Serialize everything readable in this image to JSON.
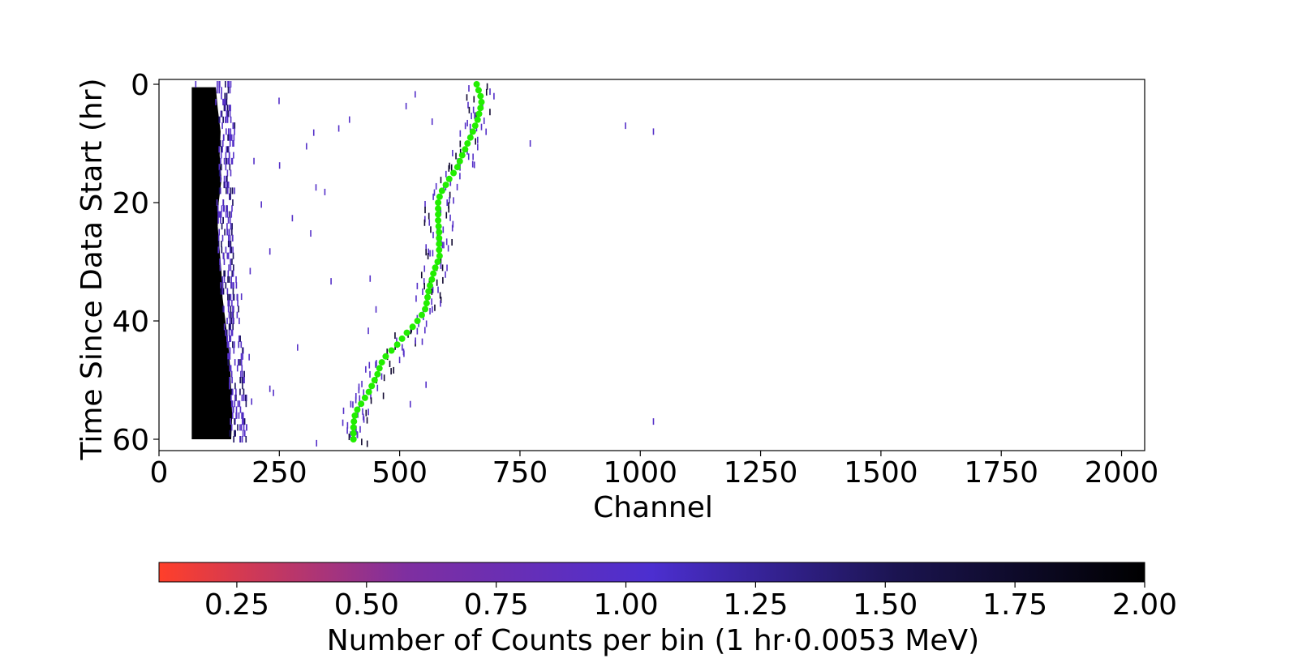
{
  "chart_data": {
    "type": "heatmap",
    "xlabel": "Channel",
    "ylabel": "Time Since Data Start (hr)",
    "xlim": [
      0,
      2048
    ],
    "ylim": [
      0,
      62
    ],
    "y_inverted": true,
    "x_ticks": [
      {
        "value": 0,
        "label": "0"
      },
      {
        "value": 250,
        "label": "250"
      },
      {
        "value": 500,
        "label": "500"
      },
      {
        "value": 750,
        "label": "750"
      },
      {
        "value": 1000,
        "label": "1000"
      },
      {
        "value": 1250,
        "label": "1250"
      },
      {
        "value": 1500,
        "label": "1500"
      },
      {
        "value": 1750,
        "label": "1750"
      },
      {
        "value": 2000,
        "label": "2000"
      }
    ],
    "y_ticks": [
      {
        "value": 0,
        "label": "0"
      },
      {
        "value": 20,
        "label": "20"
      },
      {
        "value": 40,
        "label": "40"
      },
      {
        "value": 60,
        "label": "60"
      }
    ],
    "grid": false,
    "colorbar": {
      "label": "Number of Counts per bin (1 hr·0.0053 MeV)",
      "range": [
        0.1,
        2.0
      ],
      "orientation": "horizontal",
      "placement": "bottom",
      "colors": [
        "#ff3f2a",
        "#7f2fa0",
        "#4c2fd0",
        "#1b1450",
        "#000000"
      ],
      "ticks": [
        {
          "value": 0.25,
          "label": "0.25"
        },
        {
          "value": 0.5,
          "label": "0.50"
        },
        {
          "value": 0.75,
          "label": "0.75"
        },
        {
          "value": 1.0,
          "label": "1.00"
        },
        {
          "value": 1.25,
          "label": "1.25"
        },
        {
          "value": 1.5,
          "label": "1.50"
        },
        {
          "value": 1.75,
          "label": "1.75"
        },
        {
          "value": 2.0,
          "label": "2.00"
        }
      ]
    },
    "dense_band": {
      "x_start": 68,
      "edge": [
        [
          0,
          118
        ],
        [
          4,
          122
        ],
        [
          8,
          128
        ],
        [
          12,
          126
        ],
        [
          16,
          130
        ],
        [
          20,
          124
        ],
        [
          24,
          122
        ],
        [
          28,
          126
        ],
        [
          32,
          130
        ],
        [
          36,
          132
        ],
        [
          40,
          138
        ],
        [
          44,
          144
        ],
        [
          48,
          148
        ],
        [
          52,
          150
        ],
        [
          56,
          152
        ],
        [
          60,
          150
        ]
      ],
      "y_start": 0.5,
      "y_end": 60
    },
    "series": [
      {
        "type": "scatter",
        "color": "#22ee00",
        "points": [
          [
            660,
            0
          ],
          [
            664,
            1
          ],
          [
            668,
            2
          ],
          [
            670,
            3
          ],
          [
            668,
            4
          ],
          [
            665,
            5
          ],
          [
            662,
            6
          ],
          [
            657,
            7
          ],
          [
            652,
            8
          ],
          [
            647,
            9
          ],
          [
            641,
            10
          ],
          [
            636,
            11
          ],
          [
            630,
            12
          ],
          [
            625,
            13
          ],
          [
            620,
            14
          ],
          [
            612,
            15
          ],
          [
            603,
            16
          ],
          [
            596,
            17
          ],
          [
            588,
            18
          ],
          [
            583,
            19
          ],
          [
            580,
            20
          ],
          [
            580,
            21
          ],
          [
            580,
            22
          ],
          [
            580,
            23
          ],
          [
            581,
            24
          ],
          [
            582,
            25
          ],
          [
            582,
            26
          ],
          [
            582,
            27
          ],
          [
            582,
            28
          ],
          [
            583,
            29
          ],
          [
            579,
            30
          ],
          [
            574,
            31
          ],
          [
            570,
            32
          ],
          [
            567,
            33
          ],
          [
            563,
            34
          ],
          [
            560,
            35
          ],
          [
            558,
            36
          ],
          [
            556,
            37
          ],
          [
            553,
            38
          ],
          [
            546,
            39
          ],
          [
            537,
            40
          ],
          [
            527,
            41
          ],
          [
            515,
            42
          ],
          [
            505,
            43
          ],
          [
            495,
            44
          ],
          [
            483,
            45
          ],
          [
            471,
            46
          ],
          [
            463,
            47
          ],
          [
            458,
            48
          ],
          [
            454,
            49
          ],
          [
            448,
            50
          ],
          [
            442,
            51
          ],
          [
            436,
            52
          ],
          [
            428,
            53
          ],
          [
            420,
            54
          ],
          [
            412,
            55
          ],
          [
            407,
            56
          ],
          [
            405,
            57
          ],
          [
            404,
            58
          ],
          [
            404,
            59
          ],
          [
            404,
            60
          ]
        ]
      }
    ]
  }
}
